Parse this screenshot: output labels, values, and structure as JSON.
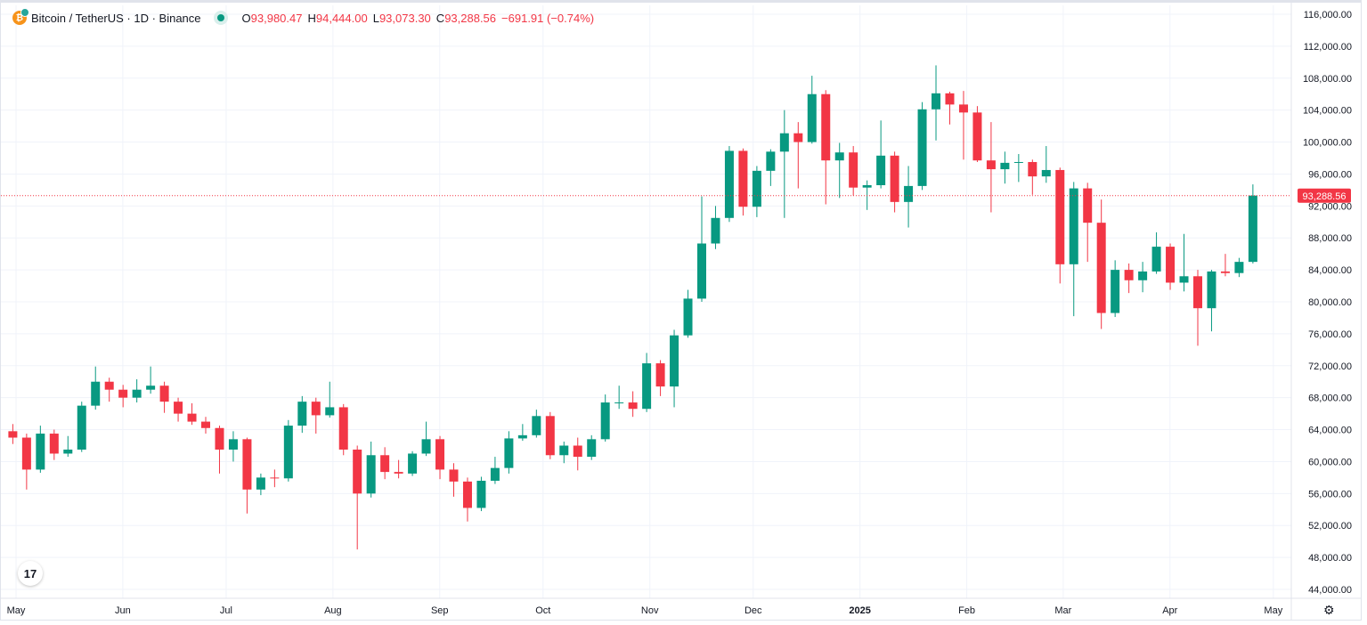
{
  "header": {
    "symbol": "Bitcoin / TetherUS · 1D · Binance",
    "open_label": "O",
    "open": "93,980.47",
    "high_label": "H",
    "high": "94,444.00",
    "low_label": "L",
    "low": "93,073.30",
    "close_label": "C",
    "close": "93,288.56",
    "change": "−691.91 (−0.74%)"
  },
  "colors": {
    "up": "#089981",
    "down": "#f23645",
    "grid": "#f0f3fa",
    "axis_text": "#131722"
  },
  "icons": {
    "symbol_logo": "bitcoin-icon",
    "status": "market-open-dot-icon",
    "brand": "tradingview-logo-icon",
    "settings": "gear-icon"
  },
  "brand_logo_text": "17",
  "chart_data": {
    "type": "candlestick",
    "title": "Bitcoin / TetherUS · 1D · Binance",
    "ylim": [
      44000,
      116000
    ],
    "y_ticks": [
      "116,000.00",
      "112,000.00",
      "108,000.00",
      "104,000.00",
      "100,000.00",
      "96,000.00",
      "92,000.00",
      "88,000.00",
      "84,000.00",
      "80,000.00",
      "76,000.00",
      "72,000.00",
      "68,000.00",
      "64,000.00",
      "60,000.00",
      "56,000.00",
      "52,000.00",
      "48,000.00",
      "44,000.00"
    ],
    "x_ticks": [
      {
        "label": "May",
        "date": "2024-05-01"
      },
      {
        "label": "Jun",
        "date": "2024-06-01"
      },
      {
        "label": "Jul",
        "date": "2024-07-01"
      },
      {
        "label": "Aug",
        "date": "2024-08-01"
      },
      {
        "label": "Sep",
        "date": "2024-09-01"
      },
      {
        "label": "Oct",
        "date": "2024-10-01"
      },
      {
        "label": "Nov",
        "date": "2024-11-01"
      },
      {
        "label": "Dec",
        "date": "2024-12-01"
      },
      {
        "label": "2025",
        "date": "2025-01-01",
        "bold": true
      },
      {
        "label": "Feb",
        "date": "2025-02-01"
      },
      {
        "label": "Mar",
        "date": "2025-03-01"
      },
      {
        "label": "Apr",
        "date": "2025-04-01"
      },
      {
        "label": "May",
        "date": "2025-05-01"
      }
    ],
    "last_price": 93288.56,
    "last_price_label": "93,288.56",
    "grid": true,
    "ohlc_thousands_columns": [
      "date",
      "open",
      "high",
      "low",
      "close"
    ],
    "ohlc": [
      [
        "2024-04-28",
        63.8,
        64.7,
        62.2,
        63.0
      ],
      [
        "2024-05-02",
        63.0,
        63.5,
        56.5,
        59.0
      ],
      [
        "2024-05-06",
        59.0,
        64.5,
        58.6,
        63.5
      ],
      [
        "2024-05-10",
        63.5,
        64.0,
        60.2,
        61.0
      ],
      [
        "2024-05-14",
        61.0,
        63.2,
        60.6,
        61.5
      ],
      [
        "2024-05-18",
        61.5,
        67.5,
        61.2,
        67.0
      ],
      [
        "2024-05-22",
        67.0,
        71.9,
        66.5,
        70.0
      ],
      [
        "2024-05-26",
        70.0,
        70.5,
        67.5,
        69.0
      ],
      [
        "2024-05-30",
        69.0,
        69.6,
        66.8,
        68.0
      ],
      [
        "2024-06-03",
        68.0,
        70.3,
        67.4,
        69.0
      ],
      [
        "2024-06-07",
        69.0,
        71.9,
        68.5,
        69.5
      ],
      [
        "2024-06-11",
        69.5,
        70.0,
        66.1,
        67.5
      ],
      [
        "2024-06-15",
        67.5,
        68.0,
        65.0,
        66.0
      ],
      [
        "2024-06-19",
        66.0,
        67.3,
        64.6,
        65.0
      ],
      [
        "2024-06-23",
        65.0,
        65.6,
        63.5,
        64.2
      ],
      [
        "2024-06-27",
        64.2,
        64.5,
        58.5,
        61.5
      ],
      [
        "2024-07-01",
        61.5,
        63.8,
        60.0,
        62.8
      ],
      [
        "2024-07-05",
        62.8,
        63.0,
        53.5,
        56.5
      ],
      [
        "2024-07-09",
        56.5,
        58.5,
        55.8,
        58.0
      ],
      [
        "2024-07-13",
        58.0,
        59.0,
        56.8,
        57.9
      ],
      [
        "2024-07-17",
        57.9,
        65.2,
        57.5,
        64.5
      ],
      [
        "2024-07-21",
        64.5,
        68.2,
        63.6,
        67.5
      ],
      [
        "2024-07-25",
        67.5,
        68.0,
        63.5,
        65.8
      ],
      [
        "2024-07-29",
        65.8,
        70.0,
        65.5,
        66.8
      ],
      [
        "2024-08-02",
        66.8,
        67.2,
        60.8,
        61.5
      ],
      [
        "2024-08-06",
        61.5,
        62.0,
        49.0,
        56.0
      ],
      [
        "2024-08-10",
        56.0,
        62.5,
        55.5,
        60.8
      ],
      [
        "2024-08-14",
        60.8,
        61.8,
        57.8,
        58.7
      ],
      [
        "2024-08-18",
        58.7,
        60.2,
        57.9,
        58.5
      ],
      [
        "2024-08-22",
        58.5,
        61.3,
        58.2,
        61.0
      ],
      [
        "2024-08-26",
        61.0,
        65.0,
        60.7,
        62.8
      ],
      [
        "2024-08-30",
        62.8,
        63.2,
        57.8,
        59.0
      ],
      [
        "2024-09-03",
        59.0,
        59.8,
        55.6,
        57.5
      ],
      [
        "2024-09-07",
        57.5,
        58.0,
        52.5,
        54.2
      ],
      [
        "2024-09-11",
        54.2,
        58.1,
        53.8,
        57.6
      ],
      [
        "2024-09-15",
        57.6,
        60.6,
        57.2,
        59.2
      ],
      [
        "2024-09-19",
        59.2,
        63.8,
        58.5,
        62.9
      ],
      [
        "2024-09-23",
        62.9,
        64.7,
        62.6,
        63.3
      ],
      [
        "2024-09-27",
        63.3,
        66.5,
        63.0,
        65.7
      ],
      [
        "2024-10-01",
        65.7,
        66.2,
        60.3,
        60.8
      ],
      [
        "2024-10-05",
        60.8,
        62.5,
        59.8,
        62.0
      ],
      [
        "2024-10-09",
        62.0,
        63.0,
        58.9,
        60.6
      ],
      [
        "2024-10-13",
        60.6,
        63.3,
        60.2,
        62.8
      ],
      [
        "2024-10-17",
        62.8,
        68.4,
        62.5,
        67.4
      ],
      [
        "2024-10-21",
        67.4,
        69.5,
        66.6,
        67.4
      ],
      [
        "2024-10-25",
        67.4,
        68.8,
        65.6,
        66.6
      ],
      [
        "2024-10-29",
        66.6,
        73.6,
        66.2,
        72.3
      ],
      [
        "2024-11-02",
        72.3,
        72.7,
        68.2,
        69.4
      ],
      [
        "2024-11-06",
        69.4,
        76.5,
        66.8,
        75.8
      ],
      [
        "2024-11-10",
        75.8,
        81.5,
        75.5,
        80.4
      ],
      [
        "2024-11-14",
        80.4,
        93.2,
        80.0,
        87.3
      ],
      [
        "2024-11-18",
        87.3,
        92.0,
        86.6,
        90.5
      ],
      [
        "2024-11-22",
        90.5,
        99.5,
        90.0,
        98.9
      ],
      [
        "2024-11-26",
        98.9,
        99.2,
        90.8,
        91.9
      ],
      [
        "2024-11-30",
        91.9,
        97.0,
        90.6,
        96.4
      ],
      [
        "2024-12-04",
        96.4,
        99.1,
        94.5,
        98.8
      ],
      [
        "2024-12-08",
        98.8,
        104.0,
        90.5,
        101.1
      ],
      [
        "2024-12-12",
        101.1,
        102.5,
        94.2,
        100.0
      ],
      [
        "2024-12-16",
        100.0,
        108.3,
        99.8,
        106.0
      ],
      [
        "2024-12-20",
        106.0,
        106.5,
        92.2,
        97.7
      ],
      [
        "2024-12-24",
        97.7,
        99.9,
        93.0,
        98.7
      ],
      [
        "2024-12-28",
        98.7,
        99.5,
        93.3,
        94.3
      ],
      [
        "2025-01-01",
        94.3,
        95.2,
        91.5,
        94.6
      ],
      [
        "2025-01-05",
        94.6,
        102.7,
        94.2,
        98.3
      ],
      [
        "2025-01-09",
        98.3,
        98.8,
        91.2,
        92.5
      ],
      [
        "2025-01-13",
        92.5,
        97.0,
        89.3,
        94.5
      ],
      [
        "2025-01-17",
        94.5,
        105.0,
        94.0,
        104.1
      ],
      [
        "2025-01-21",
        104.1,
        109.6,
        100.2,
        106.1
      ],
      [
        "2025-01-25",
        106.1,
        106.3,
        102.2,
        104.7
      ],
      [
        "2025-01-29",
        104.7,
        106.4,
        97.8,
        103.7
      ],
      [
        "2025-02-02",
        103.7,
        104.5,
        97.5,
        97.7
      ],
      [
        "2025-02-06",
        97.7,
        102.5,
        91.2,
        96.6
      ],
      [
        "2025-02-10",
        96.6,
        98.8,
        94.8,
        97.4
      ],
      [
        "2025-02-14",
        97.4,
        98.5,
        95.0,
        97.5
      ],
      [
        "2025-02-18",
        97.5,
        97.8,
        93.4,
        95.7
      ],
      [
        "2025-02-22",
        95.7,
        99.5,
        94.9,
        96.5
      ],
      [
        "2025-02-26",
        96.5,
        96.8,
        82.3,
        84.7
      ],
      [
        "2025-03-02",
        84.7,
        95.0,
        78.2,
        94.2
      ],
      [
        "2025-03-06",
        94.2,
        94.9,
        85.0,
        89.9
      ],
      [
        "2025-03-10",
        89.9,
        92.8,
        76.6,
        78.6
      ],
      [
        "2025-03-14",
        78.6,
        85.2,
        78.1,
        84.0
      ],
      [
        "2025-03-18",
        84.0,
        84.8,
        81.1,
        82.7
      ],
      [
        "2025-03-22",
        82.7,
        85.0,
        81.2,
        83.8
      ],
      [
        "2025-03-26",
        83.8,
        88.7,
        83.5,
        86.9
      ],
      [
        "2025-03-30",
        86.9,
        87.3,
        81.5,
        82.4
      ],
      [
        "2025-04-03",
        82.4,
        88.5,
        81.3,
        83.2
      ],
      [
        "2025-04-07",
        83.2,
        84.0,
        74.5,
        79.2
      ],
      [
        "2025-04-11",
        79.2,
        84.0,
        76.3,
        83.8
      ],
      [
        "2025-04-15",
        83.8,
        86.0,
        83.2,
        83.6
      ],
      [
        "2025-04-19",
        83.6,
        85.5,
        83.1,
        85.0
      ],
      [
        "2025-04-23",
        85.0,
        94.7,
        84.8,
        93.3
      ]
    ]
  }
}
